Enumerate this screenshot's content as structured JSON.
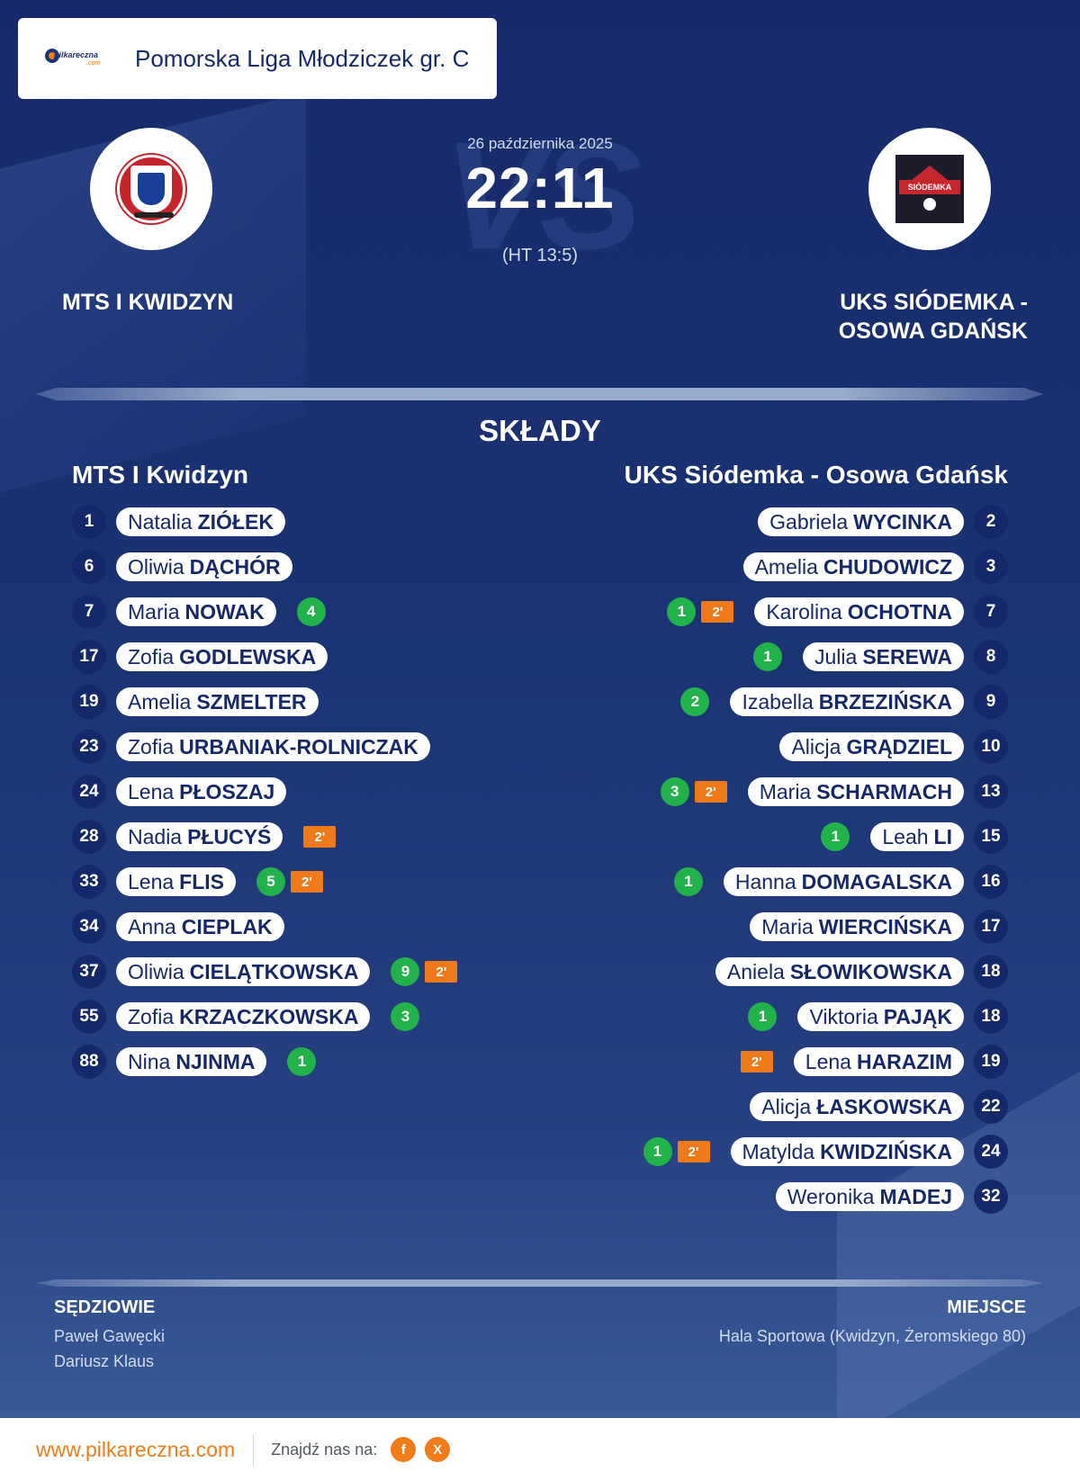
{
  "league": {
    "title": "Pomorska Liga Młodziczek gr. C",
    "logo_icon": "pilkarczna-logo"
  },
  "match": {
    "date": "26 października 2025",
    "score": "22:11",
    "halftime": "(HT 13:5)",
    "watermark": "VS"
  },
  "home": {
    "name": "MTS I KWIDZYN",
    "squad_title": "MTS I Kwidzyn",
    "logo_icon": "mts-kwidzyn-crest",
    "players": [
      {
        "number": "1",
        "first": "Natalia",
        "last": "ZIÓŁEK",
        "goals": "",
        "suspension": ""
      },
      {
        "number": "6",
        "first": "Oliwia",
        "last": "DĄCHÓR",
        "goals": "",
        "suspension": ""
      },
      {
        "number": "7",
        "first": "Maria",
        "last": "NOWAK",
        "goals": "4",
        "suspension": ""
      },
      {
        "number": "17",
        "first": "Zofia",
        "last": "GODLEWSKA",
        "goals": "",
        "suspension": ""
      },
      {
        "number": "19",
        "first": "Amelia",
        "last": "SZMELTER",
        "goals": "",
        "suspension": ""
      },
      {
        "number": "23",
        "first": "Zofia",
        "last": "URBANIAK-ROLNICZAK",
        "goals": "",
        "suspension": ""
      },
      {
        "number": "24",
        "first": "Lena",
        "last": "PŁOSZAJ",
        "goals": "",
        "suspension": ""
      },
      {
        "number": "28",
        "first": "Nadia",
        "last": "PŁUCYŚ",
        "goals": "",
        "suspension": "2'"
      },
      {
        "number": "33",
        "first": "Lena",
        "last": "FLIS",
        "goals": "5",
        "suspension": "2'"
      },
      {
        "number": "34",
        "first": "Anna",
        "last": "CIEPLAK",
        "goals": "",
        "suspension": ""
      },
      {
        "number": "37",
        "first": "Oliwia",
        "last": "CIELĄTKOWSKA",
        "goals": "9",
        "suspension": "2'"
      },
      {
        "number": "55",
        "first": "Zofia",
        "last": "KRZACZKOWSKA",
        "goals": "3",
        "suspension": ""
      },
      {
        "number": "88",
        "first": "Nina",
        "last": "NJINMA",
        "goals": "1",
        "suspension": ""
      }
    ]
  },
  "away": {
    "name": "UKS SIÓDEMKA - OSOWA GDAŃSK",
    "squad_title": "UKS Siódemka - Osowa Gdańsk",
    "logo_icon": "uks-siodemka-crest",
    "logo_text": "SIÓDEMKA",
    "players": [
      {
        "number": "2",
        "first": "Gabriela",
        "last": "WYCINKA",
        "goals": "",
        "suspension": ""
      },
      {
        "number": "3",
        "first": "Amelia",
        "last": "CHUDOWICZ",
        "goals": "",
        "suspension": ""
      },
      {
        "number": "7",
        "first": "Karolina",
        "last": "OCHOTNA",
        "goals": "1",
        "suspension": "2'"
      },
      {
        "number": "8",
        "first": "Julia",
        "last": "SEREWA",
        "goals": "1",
        "suspension": ""
      },
      {
        "number": "9",
        "first": "Izabella",
        "last": "BRZEZIŃSKA",
        "goals": "2",
        "suspension": ""
      },
      {
        "number": "10",
        "first": "Alicja",
        "last": "GRĄDZIEL",
        "goals": "",
        "suspension": ""
      },
      {
        "number": "13",
        "first": "Maria",
        "last": "SCHARMACH",
        "goals": "3",
        "suspension": "2'"
      },
      {
        "number": "15",
        "first": "Leah",
        "last": "LI",
        "goals": "1",
        "suspension": ""
      },
      {
        "number": "16",
        "first": "Hanna",
        "last": "DOMAGALSKA",
        "goals": "1",
        "suspension": ""
      },
      {
        "number": "17",
        "first": "Maria",
        "last": "WIERCIŃSKA",
        "goals": "",
        "suspension": ""
      },
      {
        "number": "18",
        "first": "Aniela",
        "last": "SŁOWIKOWSKA",
        "goals": "",
        "suspension": ""
      },
      {
        "number": "18",
        "first": "Viktoria",
        "last": "PAJĄK",
        "goals": "1",
        "suspension": ""
      },
      {
        "number": "19",
        "first": "Lena",
        "last": "HARAZIM",
        "goals": "",
        "suspension": "2'"
      },
      {
        "number": "22",
        "first": "Alicja",
        "last": "ŁASKOWSKA",
        "goals": "",
        "suspension": ""
      },
      {
        "number": "24",
        "first": "Matylda",
        "last": "KWIDZIŃSKA",
        "goals": "1",
        "suspension": "2'"
      },
      {
        "number": "32",
        "first": "Weronika",
        "last": "MADEJ",
        "goals": "",
        "suspension": ""
      }
    ]
  },
  "lineups_title": "SKŁADY",
  "referees": {
    "title": "SĘDZIOWIE",
    "names": [
      "Paweł Gawęcki",
      "Dariusz Klaus"
    ]
  },
  "venue": {
    "title": "MIEJSCE",
    "text": "Hala Sportowa (Kwidzyn, Żeromskiego 80)"
  },
  "footer": {
    "site": "www.pilkareczna.com",
    "find_us": "Znajdź nas na:",
    "socials": [
      {
        "label": "f",
        "icon": "facebook-icon"
      },
      {
        "label": "X",
        "icon": "x-icon"
      }
    ]
  },
  "colors": {
    "background": "#1b3474",
    "number_badge": "#15286a",
    "goal_badge": "#22b24c",
    "suspension_badge": "#f07a19",
    "accent": "#f07c1a"
  }
}
